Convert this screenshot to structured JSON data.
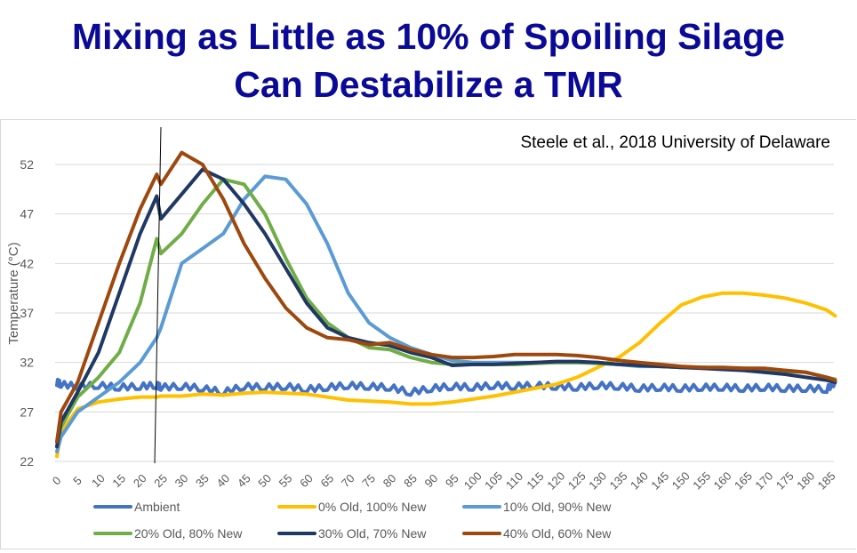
{
  "title_lines": [
    "Mixing as Little as 10% of Spoiling Silage",
    "Can Destabilize a TMR"
  ],
  "chart_data": {
    "type": "line",
    "citation": "Steele et al., 2018 University of Delaware",
    "ylabel": "Temperature (°C)",
    "xlabel": "",
    "ylim": [
      22,
      53.5
    ],
    "xlim": [
      0,
      187
    ],
    "yticks": [
      22,
      27,
      32,
      37,
      42,
      47,
      52
    ],
    "xticks": [
      0,
      5,
      10,
      15,
      20,
      25,
      30,
      35,
      40,
      45,
      50,
      55,
      60,
      65,
      70,
      75,
      80,
      85,
      90,
      95,
      100,
      105,
      110,
      115,
      120,
      125,
      130,
      135,
      140,
      145,
      150,
      155,
      160,
      165,
      170,
      175,
      180,
      185
    ],
    "grid": true,
    "legend_position": "bottom",
    "annotation_vertical_line_x": 24,
    "x": [
      0,
      1,
      5,
      10,
      15,
      20,
      24,
      25,
      30,
      35,
      40,
      45,
      50,
      55,
      60,
      65,
      70,
      75,
      80,
      85,
      90,
      95,
      100,
      105,
      110,
      115,
      120,
      125,
      130,
      135,
      140,
      145,
      150,
      155,
      160,
      165,
      170,
      175,
      180,
      185,
      187
    ],
    "series": [
      {
        "name": "Ambient",
        "color": "#4472c4",
        "values": [
          30,
          29.8,
          29.6,
          29.7,
          29.5,
          29.6,
          29.7,
          29.5,
          29.6,
          29.4,
          29.0,
          29.6,
          29.5,
          29.6,
          29.3,
          29.5,
          29.7,
          29.6,
          29.5,
          29.0,
          29.4,
          29.6,
          29.5,
          29.7,
          29.6,
          29.7,
          29.6,
          29.5,
          29.7,
          29.6,
          29.4,
          29.5,
          29.4,
          29.5,
          29.5,
          29.4,
          29.5,
          29.4,
          29.4,
          29.3,
          30.0
        ]
      },
      {
        "name": "0% Old, 100% New",
        "color": "#ffc000",
        "values": [
          22.5,
          25,
          27.3,
          28,
          28.3,
          28.5,
          28.5,
          28.6,
          28.6,
          28.8,
          28.7,
          28.9,
          29,
          28.9,
          28.8,
          28.5,
          28.2,
          28.1,
          28,
          27.8,
          27.8,
          28,
          28.3,
          28.6,
          29,
          29.4,
          29.8,
          30.5,
          31.5,
          32.5,
          34,
          36,
          37.8,
          38.6,
          39,
          39,
          38.8,
          38.5,
          38,
          37.3,
          36.7
        ]
      },
      {
        "name": "10% Old, 90% New",
        "color": "#5b9bd5",
        "values": [
          23,
          24.5,
          27,
          28.5,
          30,
          32,
          34.5,
          35.5,
          42,
          43.5,
          45,
          48.5,
          50.8,
          50.5,
          48,
          44,
          39,
          36,
          34.5,
          33.5,
          32.8,
          32.2,
          32,
          32,
          32,
          32,
          32,
          32,
          32,
          31.8,
          31.6,
          31.6,
          31.5,
          31.5,
          31.4,
          31.4,
          31.3,
          31.2,
          31,
          30.5,
          30.2
        ]
      },
      {
        "name": "20% Old, 80% New",
        "color": "#70ad47",
        "values": [
          23.5,
          25.5,
          28.5,
          30.5,
          33,
          38,
          44.5,
          43,
          45,
          48,
          50.5,
          50,
          47,
          42.5,
          38.5,
          36,
          34.5,
          33.5,
          33.3,
          32.5,
          32,
          31.8,
          31.8,
          31.8,
          31.8,
          31.9,
          32,
          32,
          31.9,
          31.8,
          31.7,
          31.6,
          31.5,
          31.5,
          31.4,
          31.3,
          31.2,
          31.1,
          31,
          30.5,
          30.3
        ]
      },
      {
        "name": "30% Old, 70% New",
        "color": "#203864",
        "values": [
          23.5,
          26,
          29,
          33,
          39,
          45,
          48.8,
          46.5,
          49,
          51.5,
          50.5,
          48,
          45,
          41.5,
          38,
          35.5,
          34.5,
          34,
          33.7,
          33,
          32.5,
          31.7,
          31.8,
          31.8,
          31.9,
          32,
          32.1,
          32.1,
          32,
          31.8,
          31.7,
          31.6,
          31.5,
          31.4,
          31.3,
          31.2,
          31,
          30.8,
          30.5,
          30.2,
          30
        ]
      },
      {
        "name": "40% Old, 60% New",
        "color": "#9e480e",
        "values": [
          24,
          27,
          30,
          36,
          42,
          47.5,
          51,
          50,
          53.2,
          52,
          48.5,
          44,
          40.5,
          37.5,
          35.5,
          34.5,
          34.3,
          33.8,
          34,
          33.3,
          32.8,
          32.5,
          32.5,
          32.6,
          32.8,
          32.8,
          32.8,
          32.7,
          32.5,
          32.2,
          32,
          31.8,
          31.6,
          31.5,
          31.5,
          31.4,
          31.4,
          31.2,
          31,
          30.5,
          30.2
        ]
      }
    ]
  }
}
